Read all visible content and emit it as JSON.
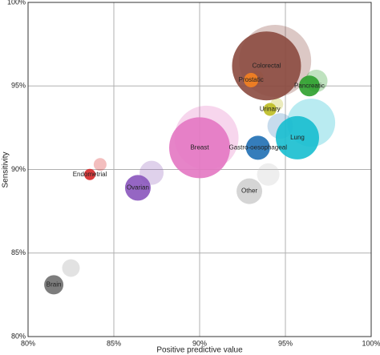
{
  "chart_data": {
    "type": "scatter",
    "x_label": "Positive predictive value",
    "y_label": "Sensitivity",
    "xlim": [
      80,
      100
    ],
    "ylim": [
      80,
      100
    ],
    "xticks": [
      {
        "value": 80,
        "label": "80%"
      },
      {
        "value": 85,
        "label": "85%"
      },
      {
        "value": 90,
        "label": "90%"
      },
      {
        "value": 95,
        "label": "95%"
      },
      {
        "value": 100,
        "label": "100%"
      }
    ],
    "yticks": [
      {
        "value": 80,
        "label": "80%"
      },
      {
        "value": 85,
        "label": "85%"
      },
      {
        "value": 90,
        "label": "90%"
      },
      {
        "value": 95,
        "label": "95%"
      },
      {
        "value": 100,
        "label": "100%"
      }
    ],
    "grid": true,
    "faded_points": [
      {
        "x": 94.4,
        "y": 96.5,
        "size": 45,
        "color": "#8b4a3f"
      },
      {
        "x": 93.3,
        "y": 95.5,
        "size": 9,
        "color": "#f58220"
      },
      {
        "x": 96.8,
        "y": 95.3,
        "size": 14,
        "color": "#2ca02c"
      },
      {
        "x": 94.5,
        "y": 93.9,
        "size": 8,
        "color": "#bcbd22"
      },
      {
        "x": 96.5,
        "y": 92.8,
        "size": 30,
        "color": "#17becf"
      },
      {
        "x": 94.7,
        "y": 92.6,
        "size": 16,
        "color": "#4a8cc4"
      },
      {
        "x": 90.4,
        "y": 91.9,
        "size": 40,
        "color": "#e377c2"
      },
      {
        "x": 84.2,
        "y": 90.3,
        "size": 8,
        "color": "#d62728"
      },
      {
        "x": 87.2,
        "y": 89.8,
        "size": 15,
        "color": "#9467bd"
      },
      {
        "x": 94.0,
        "y": 89.7,
        "size": 14,
        "color": "#c7c7c7"
      },
      {
        "x": 82.5,
        "y": 84.1,
        "size": 11,
        "color": "#a0a0a0"
      }
    ],
    "points": [
      {
        "label": "Colorectal",
        "x": 93.9,
        "y": 96.2,
        "size": 43,
        "color": "#8b4a3f"
      },
      {
        "label": "Prostatic",
        "x": 93.0,
        "y": 95.35,
        "size": 9,
        "color": "#f58220"
      },
      {
        "label": "Pancreatic",
        "x": 96.4,
        "y": 95.0,
        "size": 13,
        "color": "#2ca02c"
      },
      {
        "label": "Urinary",
        "x": 94.1,
        "y": 93.6,
        "size": 8,
        "color": "#bcbd22"
      },
      {
        "label": "Lung",
        "x": 95.7,
        "y": 91.9,
        "size": 27,
        "color": "#17becf"
      },
      {
        "label": "Gastro-oesophageal",
        "x": 93.4,
        "y": 91.3,
        "size": 15,
        "color": "#1f6fb4"
      },
      {
        "label": "Breast",
        "x": 90.0,
        "y": 91.3,
        "size": 38,
        "color": "#e377c2"
      },
      {
        "label": "Endometrial",
        "x": 83.6,
        "y": 89.7,
        "size": 7,
        "color": "#d62728"
      },
      {
        "label": "Ovarian",
        "x": 86.4,
        "y": 88.9,
        "size": 16,
        "color": "#8a55bd"
      },
      {
        "label": "Other",
        "x": 92.9,
        "y": 88.7,
        "size": 16,
        "color": "#d0d0d0"
      },
      {
        "label": "Brain",
        "x": 81.5,
        "y": 83.1,
        "size": 12,
        "color": "#6f6f6f"
      }
    ]
  }
}
